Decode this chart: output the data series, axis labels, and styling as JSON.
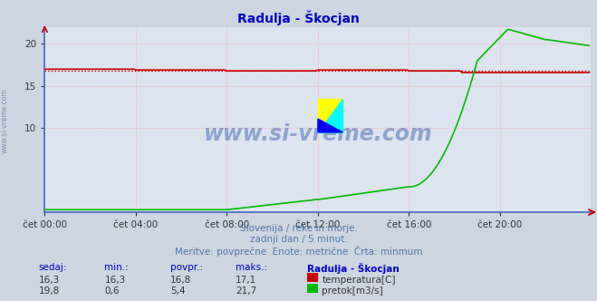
{
  "title": "Radulja - Škocjan",
  "title_color": "#0000cc",
  "bg_color": "#ccd5e0",
  "plot_bg_color": "#dce4f0",
  "grid_color": "#ffaaaa",
  "xlabel_ticks": [
    "čet 00:00",
    "čet 04:00",
    "čet 08:00",
    "čet 12:00",
    "čet 16:00",
    "čet 20:00"
  ],
  "xlabel_tick_positions": [
    0,
    48,
    96,
    144,
    192,
    240
  ],
  "total_points": 288,
  "ylim": [
    0,
    22
  ],
  "yticks": [
    10,
    15,
    20
  ],
  "temp_color": "#cc0000",
  "flow_color": "#00bb00",
  "temp_avg": 16.8,
  "subtitle1": "Slovenija / reke in morje.",
  "subtitle2": "zadnji dan / 5 minut.",
  "subtitle3": "Meritve: povprečne  Enote: metrične  Črta: minmum",
  "subtitle_color": "#5577aa",
  "watermark": "www.si-vreme.com",
  "watermark_color": "#3355aa",
  "legend_title": "Radulja - Škocjan",
  "legend_color": "#0000cc",
  "table_label_color": "#0000cc",
  "table_value_color": "#333333",
  "left_text": "www.si-vreme.com"
}
